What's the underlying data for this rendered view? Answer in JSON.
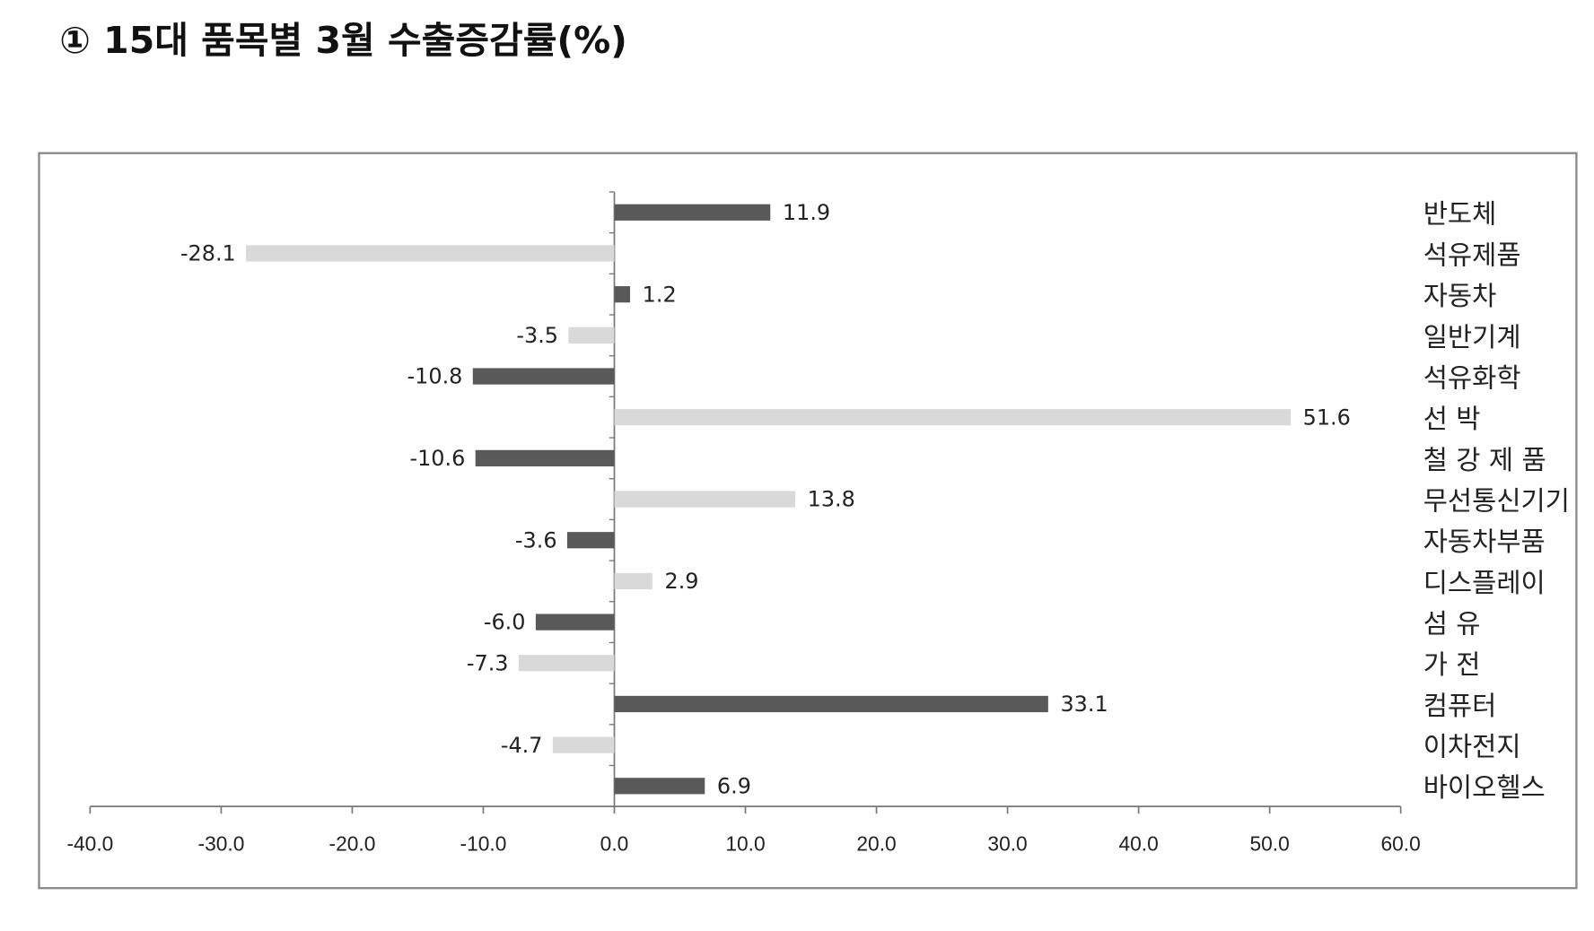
{
  "chart_data": {
    "type": "hbar",
    "title": "① 15대 품목별 3월 수출증감률(%)",
    "categories": [
      "반도체",
      "석유제품",
      "자동차",
      "일반기계",
      "석유화학",
      "선 박",
      "철 강 제 품",
      "무선통신기기",
      "자동차부품",
      "디스플레이",
      "섬 유",
      "가 전",
      "컴퓨터",
      "이차전지",
      "바이오헬스"
    ],
    "values": [
      11.9,
      -28.1,
      1.2,
      -3.5,
      -10.8,
      51.6,
      -10.6,
      13.8,
      -3.6,
      2.9,
      -6.0,
      -7.3,
      33.1,
      -4.7,
      6.9
    ],
    "value_labels": [
      "11.9",
      "-28.1",
      "1.2",
      "-3.5",
      "-10.8",
      "51.6",
      "-10.6",
      "13.8",
      "-3.6",
      "2.9",
      "-6.0",
      "-7.3",
      "33.1",
      "-4.7",
      "6.9"
    ],
    "colors": [
      "#595959",
      "#d9d9d9",
      "#595959",
      "#d9d9d9",
      "#595959",
      "#d9d9d9",
      "#595959",
      "#d9d9d9",
      "#595959",
      "#d9d9d9",
      "#595959",
      "#d9d9d9",
      "#595959",
      "#d9d9d9",
      "#595959"
    ],
    "xlim": [
      -40,
      60
    ],
    "xticks": [
      {
        "value": -40,
        "label": "-40.0"
      },
      {
        "value": -30,
        "label": "-30.0"
      },
      {
        "value": -20,
        "label": "-20.0"
      },
      {
        "value": -10,
        "label": "-10.0"
      },
      {
        "value": 0,
        "label": "0.0"
      },
      {
        "value": 10,
        "label": "10.0"
      },
      {
        "value": 20,
        "label": "20.0"
      },
      {
        "value": 30,
        "label": "30.0"
      },
      {
        "value": 40,
        "label": "40.0"
      },
      {
        "value": 50,
        "label": "50.0"
      },
      {
        "value": 60,
        "label": "60.0"
      }
    ]
  }
}
